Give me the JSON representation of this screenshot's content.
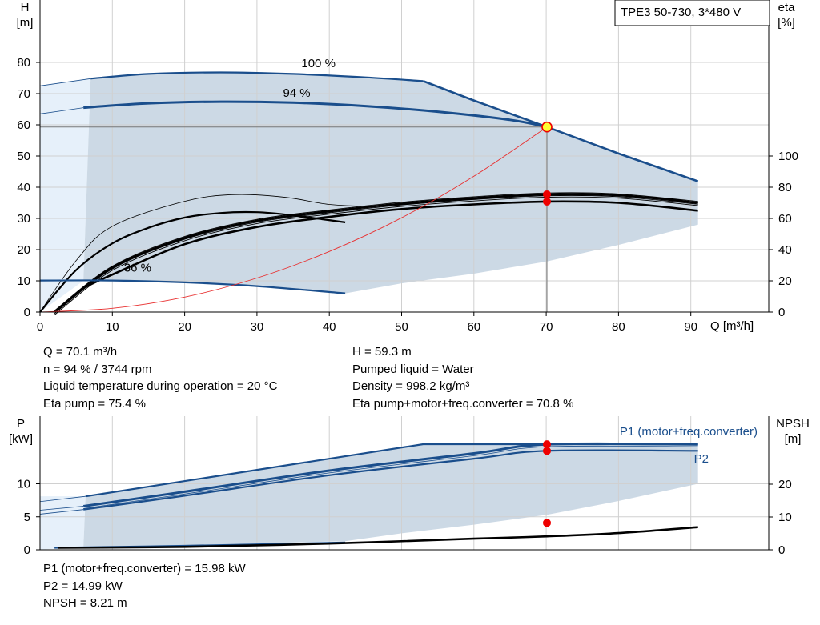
{
  "chart_data": [
    {
      "type": "line",
      "title": "TPE3 50-730, 3*480 V",
      "xlabel": "Q [m³/h]",
      "ylabel_lines": [
        "H",
        "[m]"
      ],
      "y2label_lines": [
        "eta",
        "[%]"
      ],
      "xlim": [
        0,
        93
      ],
      "ylim": [
        0,
        87
      ],
      "xticks": [
        0,
        10,
        20,
        30,
        40,
        50,
        60,
        70,
        80,
        90
      ],
      "yticks": [
        0,
        10,
        20,
        30,
        40,
        50,
        60,
        70,
        80
      ],
      "y2ticks": [
        0,
        20,
        40,
        60,
        80,
        100
      ],
      "grid": true,
      "duty_point": {
        "x": 70.1,
        "y": 59.3
      },
      "speed_labels": [
        {
          "text": "100 %",
          "x": 38.5,
          "y": 78.5
        },
        {
          "text": "94 %",
          "x": 35.5,
          "y": 69.0
        },
        {
          "text": "36 %",
          "x": 13.5,
          "y": 13.0
        }
      ],
      "series": [
        {
          "key": "h100",
          "x": [
            7,
            15,
            25,
            35,
            45,
            53
          ],
          "y": [
            74.8,
            76.3,
            76.8,
            76.3,
            75.2,
            74.0
          ]
        },
        {
          "key": "h94",
          "x": [
            6,
            15,
            25,
            35,
            45,
            55,
            65,
            70.1
          ],
          "y": [
            65.5,
            66.9,
            67.4,
            67.1,
            66.0,
            64.2,
            61.6,
            59.3
          ]
        },
        {
          "key": "h36",
          "x": [
            0,
            10,
            20,
            30,
            42.2
          ],
          "y": [
            10.1,
            10.1,
            9.5,
            8.3,
            6.0
          ]
        },
        {
          "key": "hmax",
          "x": [
            53,
            60,
            70.1,
            80,
            91
          ],
          "y": [
            74.0,
            67.8,
            59.3,
            50.8,
            41.9
          ]
        },
        {
          "key": "system",
          "x": [
            0,
            10,
            20,
            30,
            40,
            50,
            60,
            70.1
          ],
          "y": [
            0,
            1.2,
            4.8,
            10.9,
            19.4,
            30.2,
            43.5,
            59.3
          ]
        },
        {
          "key": "eta_pump",
          "x": [
            2,
            10,
            20,
            30,
            40,
            50,
            60,
            70.1,
            80,
            91
          ],
          "y": [
            0,
            28.5,
            47.5,
            58.5,
            64.5,
            69.5,
            73.0,
            75.4,
            74.8,
            70.0
          ]
        },
        {
          "key": "eta_total",
          "x": [
            6,
            10,
            20,
            30,
            40,
            50,
            60,
            70.1,
            80,
            91
          ],
          "y": [
            15.5,
            24.0,
            43.5,
            54.5,
            61.0,
            66.0,
            69.0,
            70.8,
            70.0,
            65.0
          ]
        },
        {
          "key": "eta_low",
          "x": [
            0,
            5,
            10,
            15,
            20,
            25,
            30,
            35,
            39,
            42.2
          ],
          "y": [
            0,
            27,
            44,
            54,
            60.5,
            63.5,
            64.0,
            62.0,
            59.5,
            57.5
          ]
        },
        {
          "key": "eta_thin",
          "x": [
            0,
            5,
            10,
            20,
            27,
            34,
            40,
            46,
            55,
            65,
            75,
            85,
            91
          ],
          "y": [
            0,
            33,
            55,
            71,
            75.3,
            73.5,
            69,
            68,
            70.5,
            74,
            75.2,
            73.5,
            70
          ]
        }
      ]
    },
    {
      "type": "line",
      "ylabel_lines": [
        "P",
        "[kW]"
      ],
      "y2label_lines": [
        "NPSH",
        "[m]"
      ],
      "ylim": [
        0,
        17
      ],
      "yticks": [
        0,
        5,
        10
      ],
      "y2ticks": [
        0,
        10,
        20
      ],
      "curve_labels": [
        "P1 (motor+freq.converter)",
        "P2"
      ],
      "duty_points": {
        "x": 70.1,
        "P1": 15.98,
        "P2": 14.99,
        "NPSH": 8.21
      },
      "series": [
        {
          "key": "p1_max",
          "x": [
            6.3,
            53,
            91
          ],
          "y": [
            8.1,
            16.0,
            16.0
          ]
        },
        {
          "key": "p1_94",
          "x": [
            6,
            20,
            40,
            60,
            70.1,
            91
          ],
          "y": [
            6.6,
            8.8,
            12.0,
            14.6,
            15.98,
            15.98
          ]
        },
        {
          "key": "p2_94",
          "x": [
            6,
            20,
            40,
            60,
            70.1,
            91
          ],
          "y": [
            6.1,
            8.2,
            11.3,
            13.8,
            14.99,
            14.99
          ]
        },
        {
          "key": "p_low",
          "x": [
            2,
            20,
            42.2
          ],
          "y": [
            0.3,
            0.6,
            1.1
          ]
        },
        {
          "key": "npsh",
          "x": [
            2.5,
            20,
            40,
            60,
            70.1,
            80,
            91
          ],
          "y": [
            0.6,
            0.9,
            1.9,
            3.4,
            4.1,
            5.1,
            6.9
          ]
        }
      ]
    }
  ],
  "info_top_left": [
    "Q = 70.1 m³/h",
    "n = 94 % / 3744 rpm",
    "Liquid temperature during operation = 20 °C",
    "Eta pump = 75.4 %"
  ],
  "info_top_right": [
    "H = 59.3 m",
    "Pumped liquid = Water",
    "Density = 998.2 kg/m³",
    "Eta pump+motor+freq.converter = 70.8 %"
  ],
  "info_bottom": [
    "P1 (motor+freq.converter) = 15.98 kW",
    "P2 = 14.99 kW",
    "NPSH = 8.21 m"
  ],
  "colors": {
    "envelope": "#ccd9e5",
    "curve_blue": "#1a4e8c",
    "system_curve": "#e83030",
    "duty_point_fill": "#ffff33",
    "duty_marker": "#ee0000",
    "grid": "#d0d0d0",
    "light_region": "#e6f0fa"
  }
}
